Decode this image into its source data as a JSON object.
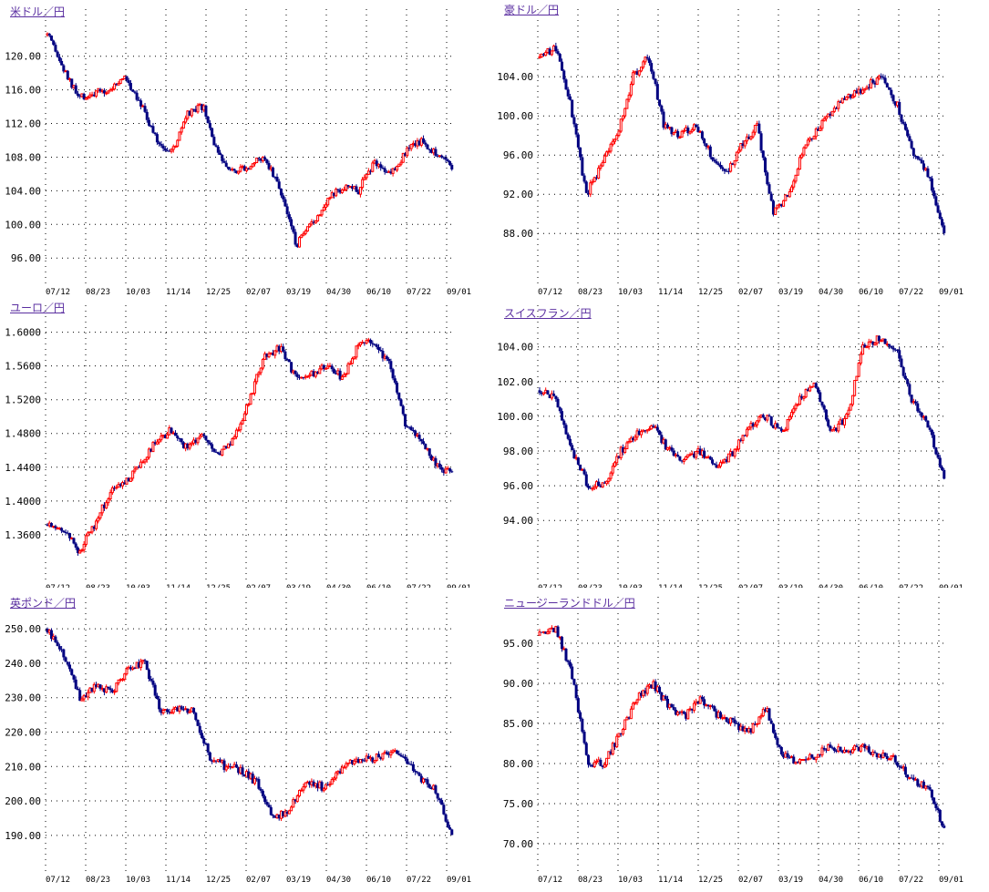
{
  "chart_data": [
    {
      "type": "candlestick",
      "title": "米ドル／円",
      "ylim": [
        93.1,
        125.6
      ],
      "yticks": [
        "96.00",
        "100.00",
        "104.00",
        "108.00",
        "112.00",
        "116.00",
        "120.00"
      ],
      "xticks": [
        "07/12",
        "08/23",
        "10/03",
        "11/14",
        "12/25",
        "02/07",
        "03/19",
        "04/30",
        "06/10",
        "07/22",
        "09/01"
      ],
      "closes": [
        122.5,
        118.5,
        115,
        115.5,
        116,
        117.5,
        114.5,
        110,
        108.5,
        113,
        114,
        108,
        106.5,
        107,
        108,
        104,
        97.5,
        100,
        103,
        104.5,
        104,
        107.5,
        106,
        108.5,
        110,
        108.5,
        107
      ]
    },
    {
      "type": "candlestick",
      "title": "豪ドル／円",
      "ylim": [
        83.0,
        110.9
      ],
      "yticks": [
        "88.00",
        "92.00",
        "96.00",
        "100.00",
        "104.00"
      ],
      "xticks": [
        "07/12",
        "08/23",
        "10/03",
        "11/14",
        "12/25",
        "02/07",
        "03/19",
        "04/30",
        "06/10",
        "07/22",
        "09/01"
      ],
      "closes": [
        106,
        107,
        101,
        92,
        95,
        98,
        104,
        106,
        99,
        98,
        99,
        96,
        94,
        97,
        99,
        90,
        92,
        97,
        99,
        101,
        102,
        103,
        104,
        101,
        96,
        94,
        88
      ]
    },
    {
      "type": "candlestick",
      "title": "ユーロ／円",
      "ylim": [
        1.308,
        1.632
      ],
      "yticks": [
        "1.3600",
        "1.4000",
        "1.4400",
        "1.4800",
        "1.5200",
        "1.5600",
        "1.6000"
      ],
      "xticks": [
        "07/12",
        "08/23",
        "10/03",
        "11/14",
        "12/25",
        "02/07",
        "03/19",
        "04/30",
        "06/10",
        "07/22",
        "09/01"
      ],
      "closes": [
        1.372,
        1.368,
        1.34,
        1.37,
        1.41,
        1.42,
        1.445,
        1.47,
        1.485,
        1.46,
        1.48,
        1.455,
        1.475,
        1.52,
        1.575,
        1.58,
        1.545,
        1.55,
        1.56,
        1.545,
        1.585,
        1.59,
        1.56,
        1.49,
        1.47,
        1.445,
        1.43
      ]
    },
    {
      "type": "candlestick",
      "title": "スイスフラン／円",
      "ylim": [
        90.65,
        106.4
      ],
      "yticks": [
        "94.00",
        "96.00",
        "98.00",
        "100.00",
        "102.00",
        "104.00"
      ],
      "xticks": [
        "07/12",
        "08/23",
        "10/03",
        "11/14",
        "12/25",
        "02/07",
        "03/19",
        "04/30",
        "06/10",
        "07/22",
        "09/01"
      ],
      "closes": [
        101.5,
        101,
        98,
        96,
        96,
        98,
        99,
        99.5,
        98,
        97.5,
        98,
        97,
        98,
        99.5,
        100,
        99,
        101,
        102,
        99,
        100,
        104,
        104.5,
        104,
        101,
        99.5,
        96.5
      ]
    },
    {
      "type": "candlestick",
      "title": "英ポンド／円",
      "ylim": [
        179.9,
        259.3
      ],
      "yticks": [
        "190.00",
        "200.00",
        "210.00",
        "220.00",
        "230.00",
        "240.00",
        "250.00"
      ],
      "xticks": [
        "07/12",
        "08/23",
        "10/03",
        "11/14",
        "12/25",
        "02/07",
        "03/19",
        "04/30",
        "06/10",
        "07/22",
        "09/01"
      ],
      "closes": [
        250,
        242,
        230,
        233,
        232,
        238,
        240,
        226,
        227,
        226,
        213,
        210,
        209,
        205,
        195,
        198,
        206,
        204,
        208,
        212,
        212,
        214,
        213,
        207,
        203,
        190
      ]
    },
    {
      "type": "candlestick",
      "title": "ニュージーランドドル／円",
      "ylim": [
        66.7,
        100.8
      ],
      "yticks": [
        "70.00",
        "75.00",
        "80.00",
        "85.00",
        "90.00",
        "95.00"
      ],
      "xticks": [
        "07/12",
        "08/23",
        "10/03",
        "11/14",
        "12/25",
        "02/07",
        "03/19",
        "04/30",
        "06/10",
        "07/22",
        "09/01"
      ],
      "closes": [
        96,
        97,
        91,
        80,
        80,
        84,
        88,
        90,
        87,
        86,
        88,
        86,
        85,
        84,
        87,
        81,
        80,
        81,
        82,
        81.5,
        82,
        81,
        80.5,
        78,
        77,
        72
      ]
    }
  ],
  "colors": {
    "up": "#ff0000",
    "down": "#000080",
    "grid": "#000000",
    "title": "#5a2ea0"
  }
}
